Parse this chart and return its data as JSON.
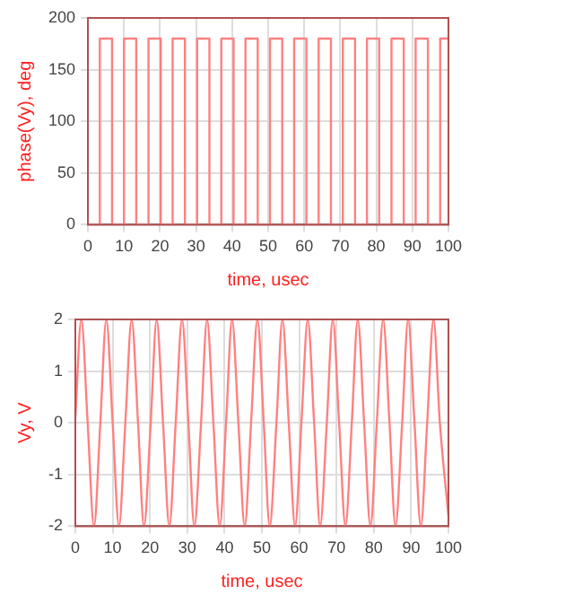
{
  "chart_data": [
    {
      "type": "step",
      "xlabel": "time, usec",
      "ylabel": "phase(Vy), deg",
      "xlim": [
        0,
        100
      ],
      "xticks": [
        0,
        10,
        20,
        30,
        40,
        50,
        60,
        70,
        80,
        90,
        100
      ],
      "ylim": [
        0,
        200
      ],
      "yticks": [
        0,
        50,
        100,
        150,
        200
      ],
      "grid": true,
      "legend": false,
      "marker": "none",
      "series": [
        {
          "color": "#ff8080",
          "x": [
            0,
            3.3,
            6.7,
            10.0,
            13.4,
            16.8,
            20.2,
            23.5,
            26.9,
            30.3,
            33.7,
            37.0,
            40.4,
            43.7,
            47.1,
            50.5,
            53.9,
            57.2,
            60.6,
            64.0,
            67.4,
            70.7,
            74.1,
            77.4,
            80.8,
            84.2,
            87.6,
            90.9,
            94.3,
            97.7,
            100
          ],
          "values": [
            0,
            180,
            0,
            180,
            0,
            180,
            0,
            180,
            0,
            180,
            0,
            180,
            0,
            180,
            0,
            180,
            0,
            180,
            0,
            180,
            0,
            180,
            0,
            180,
            0,
            180,
            0,
            180,
            0,
            180,
            180
          ]
        }
      ]
    },
    {
      "type": "line",
      "xlabel": "time, usec",
      "ylabel": "Vy, V",
      "xlim": [
        0,
        100
      ],
      "xticks": [
        0,
        10,
        20,
        30,
        40,
        50,
        60,
        70,
        80,
        90,
        100
      ],
      "ylim": [
        -2,
        2
      ],
      "yticks": [
        -2,
        -1,
        0,
        1,
        2
      ],
      "grid": true,
      "legend": false,
      "marker": "none",
      "series": [
        {
          "color": "#ff8080",
          "x": [
            0,
            1.6,
            3.3,
            5.0,
            6.7,
            8.3,
            10.0,
            11.7,
            13.4,
            15.1,
            16.8,
            18.4,
            20.2,
            21.8,
            23.5,
            25.2,
            26.9,
            28.6,
            30.3,
            31.9,
            33.7,
            35.3,
            37.0,
            38.7,
            40.4,
            42.0,
            43.7,
            45.4,
            47.1,
            48.8,
            50.5,
            52.1,
            53.9,
            55.5,
            57.2,
            58.9,
            60.6,
            62.3,
            64.0,
            65.6,
            67.4,
            69.0,
            70.7,
            72.4,
            74.1,
            75.7,
            77.4,
            79.1,
            80.8,
            82.5,
            84.2,
            85.8,
            87.6,
            89.2,
            90.9,
            92.6,
            94.3,
            96.0,
            97.7,
            100
          ],
          "values": [
            0.1,
            2,
            0,
            -2,
            0,
            2,
            0,
            -2,
            0,
            2,
            0,
            -2,
            0,
            2,
            0,
            -2,
            0,
            2,
            0,
            -2,
            0,
            2,
            0,
            -2,
            0,
            2,
            0,
            -2,
            0,
            2,
            0,
            -2,
            0,
            2,
            0,
            -2,
            0,
            2,
            0,
            -2,
            0,
            2,
            0,
            -2,
            0,
            2,
            0,
            -2,
            0,
            2,
            0,
            -2,
            0,
            2,
            0,
            -2,
            0,
            2,
            0,
            -1.8
          ]
        }
      ]
    }
  ]
}
